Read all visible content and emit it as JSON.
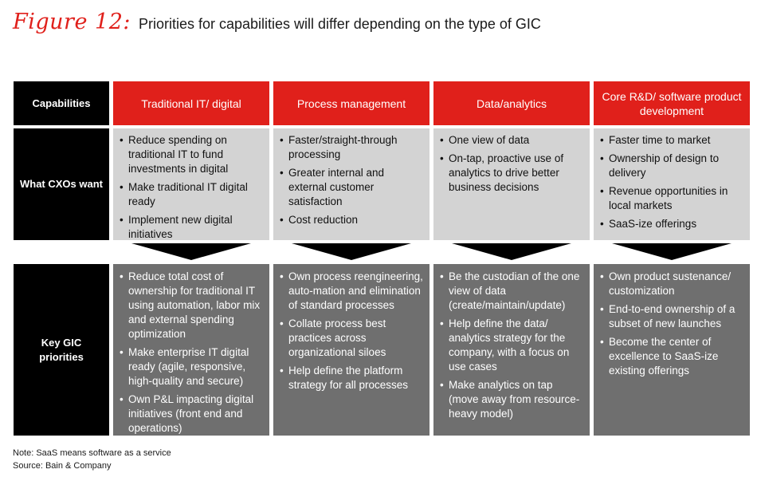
{
  "title": {
    "figure_label": "Figure 12:",
    "text": "Priorities for capabilities will differ depending on the type of GIC"
  },
  "row_labels": {
    "header": "Capabilities",
    "cxo": "What CXOs want",
    "gic": "Key GIC priorities"
  },
  "columns": [
    {
      "header": "Traditional IT/ digital",
      "cxo_wants": [
        "Reduce spending on traditional IT to fund investments in digital",
        "Make traditional IT digital ready",
        "Implement new digital initiatives"
      ],
      "gic_priorities": [
        "Reduce total cost of ownership for traditional IT using automation, labor mix and external spending optimization",
        "Make enterprise IT digital ready (agile, responsive, high-quality and secure)",
        "Own P&L impacting digital initiatives (front end and operations)"
      ]
    },
    {
      "header": "Process management",
      "cxo_wants": [
        "Faster/straight-through processing",
        "Greater internal and external customer satisfaction",
        "Cost reduction"
      ],
      "gic_priorities": [
        "Own process reengineering, auto-mation and elimination of standard processes",
        "Collate process best practices across organizational siloes",
        "Help define the platform strategy for all processes"
      ]
    },
    {
      "header": "Data/analytics",
      "cxo_wants": [
        "One view of data",
        "On-tap, proactive use of analytics to drive better business decisions"
      ],
      "gic_priorities": [
        "Be the custodian of the one view of data (create/maintain/update)",
        "Help define the data/ analytics strategy for the company, with a focus on use cases",
        "Make analytics on tap (move away from resource-heavy model)"
      ]
    },
    {
      "header": "Core R&D/ software product development",
      "cxo_wants": [
        "Faster time to market",
        "Ownership of design to delivery",
        "Revenue opportunities in local markets",
        "SaaS-ize offerings"
      ],
      "gic_priorities": [
        "Own product sustenance/ customization",
        "End-to-end ownership of a subset of new launches",
        "Become the center of excellence to SaaS-ize existing offerings"
      ]
    }
  ],
  "footer": {
    "note": "Note: SaaS means software as a service",
    "source": "Source: Bain & Company"
  },
  "colors": {
    "header_red": "#e0201b",
    "label_black": "#000000",
    "cxo_gray": "#d3d3d3",
    "gic_gray": "#6f6f6f"
  }
}
